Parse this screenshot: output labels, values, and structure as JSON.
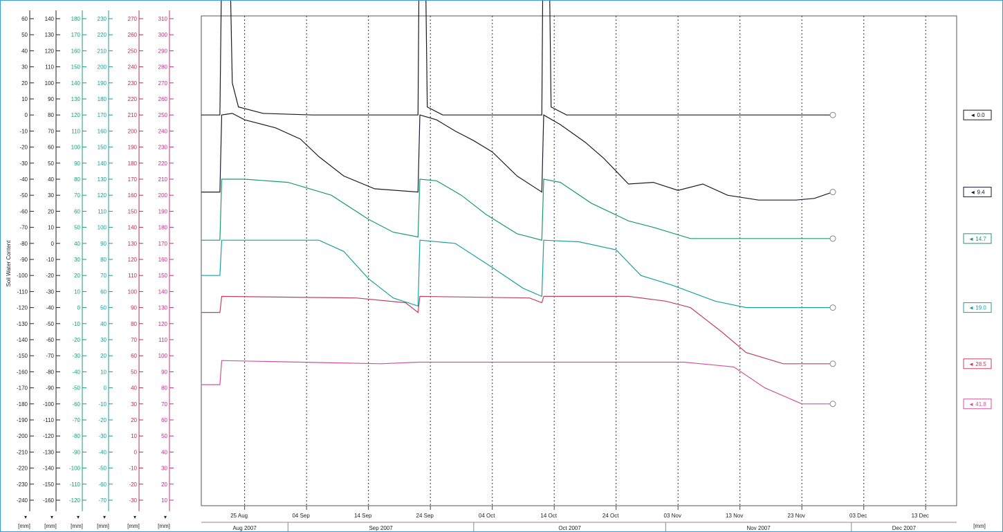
{
  "chart_data": {
    "type": "line",
    "ylabel": "Soil Water Content",
    "axes": [
      {
        "color": "#222222",
        "unit_label": "[mm]",
        "ticks": [
          "60",
          "50",
          "40",
          "30",
          "20",
          "10",
          "0",
          "-10",
          "-20",
          "-30",
          "-40",
          "-50",
          "-60",
          "-70",
          "-80",
          "-90",
          "-100",
          "-110",
          "-120",
          "-130",
          "-140",
          "-150",
          "-160",
          "-170",
          "-180",
          "-190",
          "-200",
          "-210",
          "-220",
          "-230",
          "-240"
        ]
      },
      {
        "color": "#222222",
        "unit_label": "[mm]",
        "ticks": [
          "140",
          "130",
          "120",
          "110",
          "100",
          "90",
          "80",
          "70",
          "60",
          "50",
          "40",
          "30",
          "20",
          "10",
          "0",
          "-10",
          "-20",
          "-30",
          "-40",
          "-50",
          "-60",
          "-70",
          "-80",
          "-90",
          "-100",
          "-110",
          "-120",
          "-130",
          "-140",
          "-150",
          "-160"
        ]
      },
      {
        "color": "#1a9a7a",
        "unit_label": "[mm]",
        "ticks": [
          "180",
          "170",
          "160",
          "150",
          "140",
          "130",
          "120",
          "110",
          "100",
          "90",
          "80",
          "70",
          "60",
          "50",
          "40",
          "30",
          "20",
          "10",
          "0",
          "-10",
          "-20",
          "-30",
          "-40",
          "-50",
          "-60",
          "-70",
          "-80",
          "-90",
          "-100",
          "-110",
          "-120"
        ]
      },
      {
        "color": "#1a9a9a",
        "unit_label": "[mm]",
        "ticks": [
          "230",
          "220",
          "210",
          "200",
          "190",
          "180",
          "170",
          "160",
          "150",
          "140",
          "130",
          "120",
          "110",
          "100",
          "90",
          "80",
          "70",
          "60",
          "50",
          "40",
          "30",
          "20",
          "10",
          "0",
          "-10",
          "-20",
          "-30",
          "-40",
          "-50",
          "-60",
          "-70"
        ]
      },
      {
        "color": "#b03050",
        "unit_label": "[mm]",
        "ticks": [
          "270",
          "260",
          "250",
          "240",
          "230",
          "220",
          "210",
          "200",
          "190",
          "180",
          "170",
          "160",
          "150",
          "140",
          "130",
          "120",
          "110",
          "100",
          "90",
          "80",
          "70",
          "60",
          "50",
          "40",
          "30",
          "20",
          "10",
          "0",
          "-10",
          "-20",
          "-30"
        ]
      },
      {
        "color": "#c03080",
        "unit_label": "[mm]",
        "ticks": [
          "310",
          "300",
          "290",
          "280",
          "270",
          "260",
          "250",
          "240",
          "230",
          "220",
          "210",
          "200",
          "190",
          "180",
          "170",
          "160",
          "150",
          "140",
          "130",
          "120",
          "110",
          "100",
          "90",
          "80",
          "70",
          "60",
          "50",
          "40",
          "30",
          "20",
          "10"
        ]
      }
    ],
    "right_unit_label": "[mm]",
    "x_labels": [
      "25 Aug",
      "04 Sep",
      "14 Sep",
      "24 Sep",
      "04 Oct",
      "14 Oct",
      "24 Oct",
      "03 Nov",
      "13 Nov",
      "23 Nov",
      "03 Dec",
      "13 Dec"
    ],
    "months": [
      "Aug 2007",
      "Sep 2007",
      "Oct 2007",
      "Nov 2007",
      "Dec 2007"
    ],
    "x_domain": [
      "2007-08-18",
      "2007-12-18"
    ],
    "y_domain": [
      -240,
      60
    ],
    "grid": "vertical dashed",
    "series": [
      {
        "name": "0.0",
        "color": "#1a1a1a",
        "points": [
          [
            "2007-08-18",
            0
          ],
          [
            "2007-08-21",
            0
          ],
          [
            "2007-08-21.5",
            160
          ],
          [
            "2007-08-22.3",
            160
          ],
          [
            "2007-08-23",
            20
          ],
          [
            "2007-08-24",
            5
          ],
          [
            "2007-08-28",
            1
          ],
          [
            "2007-09-05",
            0
          ],
          [
            "2007-09-22",
            0
          ],
          [
            "2007-09-22.3",
            160
          ],
          [
            "2007-09-23",
            160
          ],
          [
            "2007-09-23.5",
            5
          ],
          [
            "2007-09-26",
            0
          ],
          [
            "2007-10-12",
            0
          ],
          [
            "2007-10-12.3",
            160
          ],
          [
            "2007-10-13",
            160
          ],
          [
            "2007-10-13.5",
            5
          ],
          [
            "2007-10-16",
            0
          ],
          [
            "2007-11-28",
            0
          ]
        ]
      },
      {
        "name": "9.4",
        "color": "#1a1a2e",
        "points": [
          [
            "2007-08-18",
            -48
          ],
          [
            "2007-08-21",
            -48
          ],
          [
            "2007-08-21.3",
            0
          ],
          [
            "2007-08-23",
            1
          ],
          [
            "2007-08-25",
            -3
          ],
          [
            "2007-08-30",
            -8
          ],
          [
            "2007-09-03",
            -15
          ],
          [
            "2007-09-06",
            -26
          ],
          [
            "2007-09-10",
            -38
          ],
          [
            "2007-09-15",
            -46
          ],
          [
            "2007-09-22",
            -48
          ],
          [
            "2007-09-22.3",
            0
          ],
          [
            "2007-09-25",
            -3
          ],
          [
            "2007-09-28",
            -10
          ],
          [
            "2007-10-01",
            -16
          ],
          [
            "2007-10-04",
            -23
          ],
          [
            "2007-10-08",
            -38
          ],
          [
            "2007-10-12",
            -48
          ],
          [
            "2007-10-12.3",
            0
          ],
          [
            "2007-10-15",
            -6
          ],
          [
            "2007-10-19",
            -17
          ],
          [
            "2007-10-22",
            -27
          ],
          [
            "2007-10-26",
            -43
          ],
          [
            "2007-10-30",
            -42
          ],
          [
            "2007-11-03",
            -47
          ],
          [
            "2007-11-07",
            -43
          ],
          [
            "2007-11-11",
            -50
          ],
          [
            "2007-11-16",
            -53
          ],
          [
            "2007-11-20",
            -53
          ],
          [
            "2007-11-22",
            -53
          ],
          [
            "2007-11-25",
            -52
          ],
          [
            "2007-11-28",
            -48
          ]
        ]
      },
      {
        "name": "14.7",
        "color": "#1a9a70",
        "points": [
          [
            "2007-08-18",
            -78
          ],
          [
            "2007-08-21",
            -78
          ],
          [
            "2007-08-21.3",
            -40
          ],
          [
            "2007-08-25",
            -40
          ],
          [
            "2007-09-01",
            -42
          ],
          [
            "2007-09-08",
            -50
          ],
          [
            "2007-09-14",
            -65
          ],
          [
            "2007-09-18",
            -73
          ],
          [
            "2007-09-22",
            -76
          ],
          [
            "2007-09-22.3",
            -40
          ],
          [
            "2007-09-25",
            -41
          ],
          [
            "2007-09-29",
            -50
          ],
          [
            "2007-10-03",
            -62
          ],
          [
            "2007-10-08",
            -74
          ],
          [
            "2007-10-12",
            -78
          ],
          [
            "2007-10-12.3",
            -40
          ],
          [
            "2007-10-15",
            -42
          ],
          [
            "2007-10-20",
            -55
          ],
          [
            "2007-10-26",
            -66
          ],
          [
            "2007-10-30",
            -70
          ],
          [
            "2007-11-05",
            -77
          ],
          [
            "2007-11-15",
            -77
          ],
          [
            "2007-11-28",
            -77
          ]
        ]
      },
      {
        "name": "19.0",
        "color": "#1aa0a0",
        "points": [
          [
            "2007-08-18",
            -100
          ],
          [
            "2007-08-21",
            -100
          ],
          [
            "2007-08-21.3",
            -78
          ],
          [
            "2007-08-30",
            -78
          ],
          [
            "2007-09-06",
            -78
          ],
          [
            "2007-09-10",
            -85
          ],
          [
            "2007-09-14",
            -102
          ],
          [
            "2007-09-18",
            -114
          ],
          [
            "2007-09-22",
            -119
          ],
          [
            "2007-09-22.3",
            -78
          ],
          [
            "2007-09-28",
            -80
          ],
          [
            "2007-10-04",
            -95
          ],
          [
            "2007-10-09",
            -108
          ],
          [
            "2007-10-12",
            -113
          ],
          [
            "2007-10-12.3",
            -78
          ],
          [
            "2007-10-18",
            -79
          ],
          [
            "2007-10-24",
            -84
          ],
          [
            "2007-10-28",
            -100
          ],
          [
            "2007-11-02",
            -106
          ],
          [
            "2007-11-09",
            -116
          ],
          [
            "2007-11-14",
            -120
          ],
          [
            "2007-11-28",
            -120
          ]
        ]
      },
      {
        "name": "28.5",
        "color": "#c04060",
        "points": [
          [
            "2007-08-18",
            -123
          ],
          [
            "2007-08-21",
            -123
          ],
          [
            "2007-08-21.3",
            -113
          ],
          [
            "2007-09-12",
            -114
          ],
          [
            "2007-09-20",
            -117
          ],
          [
            "2007-09-22",
            -123
          ],
          [
            "2007-09-22.3",
            -113
          ],
          [
            "2007-10-10",
            -114
          ],
          [
            "2007-10-12",
            -117
          ],
          [
            "2007-10-12.3",
            -113
          ],
          [
            "2007-10-26",
            -113
          ],
          [
            "2007-11-01",
            -116
          ],
          [
            "2007-11-05",
            -120
          ],
          [
            "2007-11-10",
            -135
          ],
          [
            "2007-11-14",
            -148
          ],
          [
            "2007-11-20",
            -155
          ],
          [
            "2007-11-28",
            -155
          ]
        ]
      },
      {
        "name": "41.8",
        "color": "#d050a0",
        "points": [
          [
            "2007-08-18",
            -168
          ],
          [
            "2007-08-21",
            -168
          ],
          [
            "2007-08-21.3",
            -153
          ],
          [
            "2007-09-16",
            -155
          ],
          [
            "2007-09-22",
            -154
          ],
          [
            "2007-10-12",
            -154
          ],
          [
            "2007-11-04",
            -154
          ],
          [
            "2007-11-12",
            -157
          ],
          [
            "2007-11-17",
            -170
          ],
          [
            "2007-11-23",
            -180
          ],
          [
            "2007-11-28",
            -180
          ]
        ]
      }
    ]
  }
}
